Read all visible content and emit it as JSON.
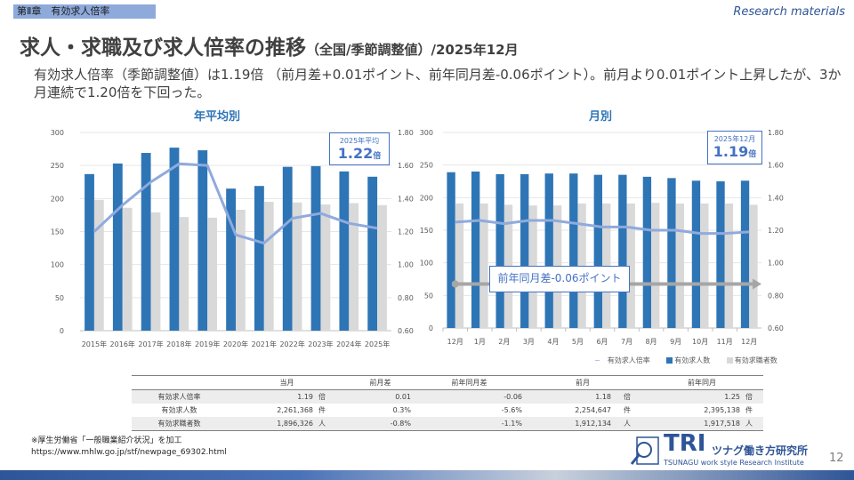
{
  "header": {
    "chapter": "第Ⅱ章　有効求人倍率",
    "research": "Research materials",
    "title": "求人・求職及び求人倍率の推移",
    "title_sub": "（全国/季節調整値）/2025年12月"
  },
  "summary": "有効求人倍率（季節調整値）は1.19倍 （前月差+0.01ポイント、前年同月差-0.06ポイント）。前月より0.01ポイント上昇したが、3か月連続で1.20倍を下回った。",
  "colors": {
    "openings": "#2e75b6",
    "seekers": "#d9d9d9",
    "ratio": "#8faadc",
    "accent": "#4472c4"
  },
  "chart_data": [
    {
      "type": "bar",
      "title": "年平均別",
      "categories": [
        "2015年",
        "2016年",
        "2017年",
        "2018年",
        "2019年",
        "2020年",
        "2021年",
        "2022年",
        "2023年",
        "2024年",
        "2025年"
      ],
      "series": [
        {
          "name": "有効求人数",
          "values": [
            237,
            253,
            269,
            277,
            273,
            215,
            219,
            248,
            249,
            241,
            233
          ]
        },
        {
          "name": "有効求職者数",
          "values": [
            198,
            186,
            179,
            172,
            171,
            183,
            195,
            194,
            191,
            193,
            190
          ]
        },
        {
          "name": "有効求人倍率",
          "axis": "right",
          "values": [
            1.2,
            1.36,
            1.5,
            1.61,
            1.6,
            1.18,
            1.13,
            1.28,
            1.31,
            1.25,
            1.22
          ]
        }
      ],
      "yticks": [
        "0",
        "50",
        "100",
        "150",
        "200",
        "250",
        "300"
      ],
      "y2ticks": [
        "0.60",
        "0.80",
        "1.00",
        "1.20",
        "1.40",
        "1.60",
        "1.80"
      ],
      "ylim": [
        0,
        300
      ],
      "y2lim": [
        0.6,
        1.8
      ],
      "callout": {
        "label": "2025年平均",
        "value": "1.22",
        "unit": "倍"
      }
    },
    {
      "type": "bar",
      "title": "月別",
      "categories": [
        "12月",
        "1月",
        "2月",
        "3月",
        "4月",
        "5月",
        "6月",
        "7月",
        "8月",
        "9月",
        "10月",
        "11月",
        "12月"
      ],
      "series": [
        {
          "name": "有効求人数",
          "values": [
            239,
            240,
            236,
            236,
            237,
            237,
            235,
            235,
            232,
            230,
            226,
            225,
            226
          ]
        },
        {
          "name": "有効求職者数",
          "values": [
            191,
            191,
            189,
            188,
            188,
            191,
            191,
            191,
            192,
            191,
            191,
            191,
            189
          ]
        },
        {
          "name": "有効求人倍率",
          "axis": "right",
          "values": [
            1.25,
            1.26,
            1.24,
            1.26,
            1.26,
            1.24,
            1.22,
            1.22,
            1.2,
            1.2,
            1.18,
            1.18,
            1.19
          ]
        }
      ],
      "yticks": [
        "0",
        "50",
        "100",
        "150",
        "200",
        "250",
        "300"
      ],
      "y2ticks": [
        "0.60",
        "0.80",
        "1.00",
        "1.20",
        "1.40",
        "1.60",
        "1.80"
      ],
      "ylim": [
        0,
        300
      ],
      "y2lim": [
        0.6,
        1.8
      ],
      "callout": {
        "label": "2025年12月",
        "value": "1.19",
        "unit": "倍"
      },
      "annotation": "前年同月差-0.06ポイント",
      "legend": [
        "有効求人倍率",
        "有効求人数",
        "有効求職者数"
      ]
    }
  ],
  "table": {
    "headers": [
      "当月",
      "前月差",
      "前年同月差",
      "前月",
      "前年同月"
    ],
    "rows": [
      {
        "label": "有効求人倍率",
        "cur": "1.19",
        "cu": "倍",
        "d": "0.01",
        "y": "-0.06",
        "prev": "1.18",
        "pu": "倍",
        "py": "1.25",
        "yu": "倍"
      },
      {
        "label": "有効求人数",
        "cur": "2,261,368",
        "cu": "件",
        "d": "0.3%",
        "y": "-5.6%",
        "prev": "2,254,647",
        "pu": "件",
        "py": "2,395,138",
        "yu": "件"
      },
      {
        "label": "有効求職者数",
        "cur": "1,896,326",
        "cu": "人",
        "d": "-0.8%",
        "y": "-1.1%",
        "prev": "1,912,134",
        "pu": "人",
        "py": "1,917,518",
        "yu": "人"
      }
    ]
  },
  "footer": {
    "note": "※厚生労働省「一般職業紹介状況」を加工",
    "url": "https://www.mhlw.go.jp/stf/newpage_69302.html",
    "logo_tri": "TRI",
    "logo_jp": "ツナグ働き方研究所",
    "logo_en": "TSUNAGU work style Research Institute",
    "page": "12"
  }
}
